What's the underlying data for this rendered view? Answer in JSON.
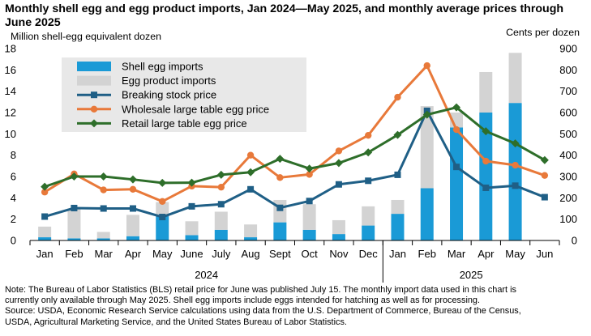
{
  "title": "Monthly shell egg and egg product imports, Jan 2024—May 2025, and monthly average prices through June 2025",
  "notes": [
    "Note: The Bureau of Labor Statistics (BLS) retail price for June was published July 15. The monthly import data used in this chart is",
    "currently only available through May 2025. Shell egg imports include eggs intended for hatching as well as for processing.",
    "Source: USDA, Economic Research Service calculations using data from the U.S. Department of Commerce, Bureau of the Census,",
    "USDA, Agricultural Marketing Service, and the United States Bureau of Labor Statistics."
  ],
  "colors": {
    "shell": "#1a9ad6",
    "product": "#d3d3d3",
    "breaking": "#1f5f86",
    "wholesale": "#e8793a",
    "retail": "#2e6e2a",
    "legend_bg": "#e8e8e8",
    "grid": "#d9d9d9"
  },
  "chart_data": {
    "type": "bar",
    "categories": [
      "Jan",
      "Feb",
      "Mar",
      "Apr",
      "May",
      "June",
      "July",
      "Aug",
      "Sept",
      "Oct",
      "Nov",
      "Dec",
      "Jan",
      "Feb",
      "Mar",
      "Apr",
      "May",
      "Jun"
    ],
    "year_labels": [
      {
        "label": "2024",
        "start": 0,
        "end": 11
      },
      {
        "label": "2025",
        "start": 12,
        "end": 17
      }
    ],
    "ylabel": "Million shell-egg equivalent dozen",
    "y2label": "Cents per dozen",
    "ylim": [
      0,
      18
    ],
    "y2lim": [
      0,
      900
    ],
    "yticks": [
      0,
      2,
      4,
      6,
      8,
      10,
      12,
      14,
      16,
      18
    ],
    "y2ticks": [
      0,
      100,
      200,
      300,
      400,
      500,
      600,
      700,
      800,
      900
    ],
    "legend_position": "top-left",
    "grid": false,
    "bar_series": [
      {
        "name": "Shell egg imports",
        "axis": "left",
        "values": [
          0.3,
          0.2,
          0.2,
          0.4,
          2.3,
          0.5,
          1.0,
          0.3,
          1.7,
          1.0,
          0.6,
          1.4,
          2.5,
          4.9,
          10.6,
          12.0,
          12.9,
          null
        ]
      },
      {
        "name": "Egg product imports",
        "axis": "left",
        "values": [
          1.0,
          2.8,
          0.6,
          2.0,
          1.3,
          1.3,
          1.7,
          1.2,
          2.1,
          2.4,
          1.3,
          1.8,
          1.3,
          7.7,
          1.4,
          3.8,
          4.7,
          null
        ]
      }
    ],
    "line_series": [
      {
        "name": "Breaking stock price",
        "axis": "right",
        "values": [
          112,
          152,
          150,
          150,
          110,
          160,
          170,
          240,
          153,
          185,
          263,
          280,
          308,
          608,
          345,
          247,
          257,
          203
        ]
      },
      {
        "name": "Wholesale large table egg price",
        "axis": "right",
        "values": [
          227,
          312,
          237,
          240,
          183,
          255,
          250,
          400,
          295,
          310,
          420,
          493,
          672,
          820,
          520,
          372,
          353,
          305
        ]
      },
      {
        "name": "Retail large table egg price",
        "axis": "right",
        "values": [
          252,
          300,
          300,
          286,
          270,
          271,
          308,
          320,
          383,
          337,
          363,
          413,
          495,
          590,
          624,
          512,
          455,
          377
        ]
      }
    ]
  }
}
